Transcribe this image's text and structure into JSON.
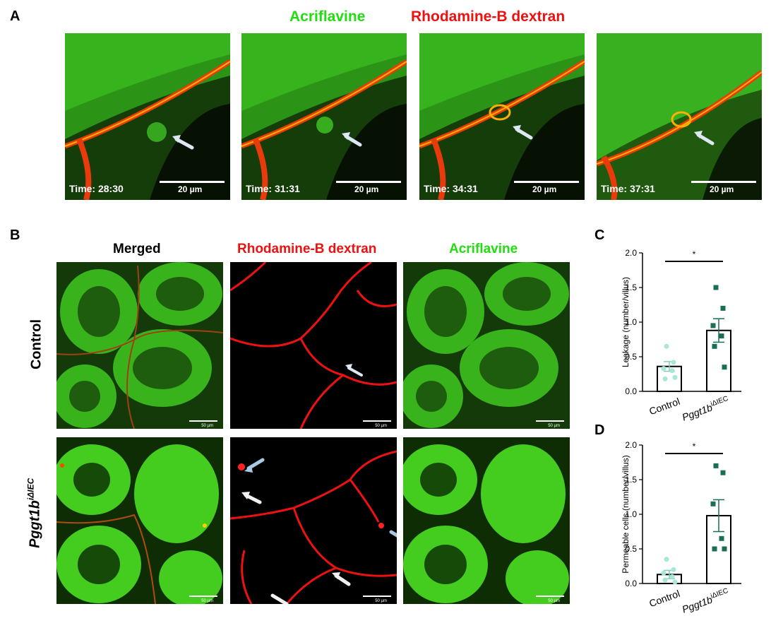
{
  "panel_letters": {
    "a": "A",
    "b": "B",
    "c": "C",
    "d": "D"
  },
  "panel_a": {
    "legend_green": "Acriflavine",
    "legend_red": "Rhodamine-B dextran",
    "frames": [
      {
        "time": "Time: 28:30",
        "scale": "20 µm"
      },
      {
        "time": "Time: 31:31",
        "scale": "20 µm"
      },
      {
        "time": "Time: 34:31",
        "scale": "20 µm"
      },
      {
        "time": "Time: 37:31",
        "scale": "20 µm"
      }
    ]
  },
  "panel_b": {
    "col_headers": [
      "Merged",
      "Rhodamine-B dextran",
      "Acriflavine"
    ],
    "row_labels": {
      "control": "Control",
      "mutant_base": "Pggt1b",
      "mutant_sup": "iΔIEC"
    },
    "scale": "50 µm"
  },
  "colors": {
    "green": "#22dd11",
    "red": "#ee1111",
    "control_dots": "#a8e6d6",
    "mutant_dots": "#1a6e56"
  },
  "chart_data": [
    {
      "type": "bar",
      "panel": "C",
      "ylabel": "Leakage (number/villus)",
      "categories": [
        "Control",
        "Pggt1b"
      ],
      "category_superscripts": [
        "",
        "iΔIEC"
      ],
      "values": [
        0.36,
        0.88
      ],
      "sem": [
        0.07,
        0.17
      ],
      "ylim": [
        0,
        2.0
      ],
      "yticks": [
        "0.0",
        "0.5",
        "1.0",
        "1.5",
        "2.0"
      ],
      "significance": "*",
      "points": [
        [
          0.65,
          0.42,
          0.33,
          0.3,
          0.18,
          0.2
        ],
        [
          1.5,
          1.2,
          0.95,
          0.8,
          0.65,
          0.35
        ]
      ]
    },
    {
      "type": "bar",
      "panel": "D",
      "ylabel": "Permeable cells (number/villus)",
      "categories": [
        "Control",
        "Pggt1b"
      ],
      "category_superscripts": [
        "",
        "iΔIEC"
      ],
      "values": [
        0.13,
        0.98
      ],
      "sem": [
        0.06,
        0.23
      ],
      "ylim": [
        0,
        2.0
      ],
      "yticks": [
        "0.0",
        "0.5",
        "1.0",
        "1.5",
        "2.0"
      ],
      "significance": "*",
      "points": [
        [
          0.35,
          0.2,
          0.15,
          0.1,
          0.05,
          0.02
        ],
        [
          1.7,
          1.6,
          1.15,
          0.65,
          0.5,
          0.5
        ]
      ]
    }
  ]
}
